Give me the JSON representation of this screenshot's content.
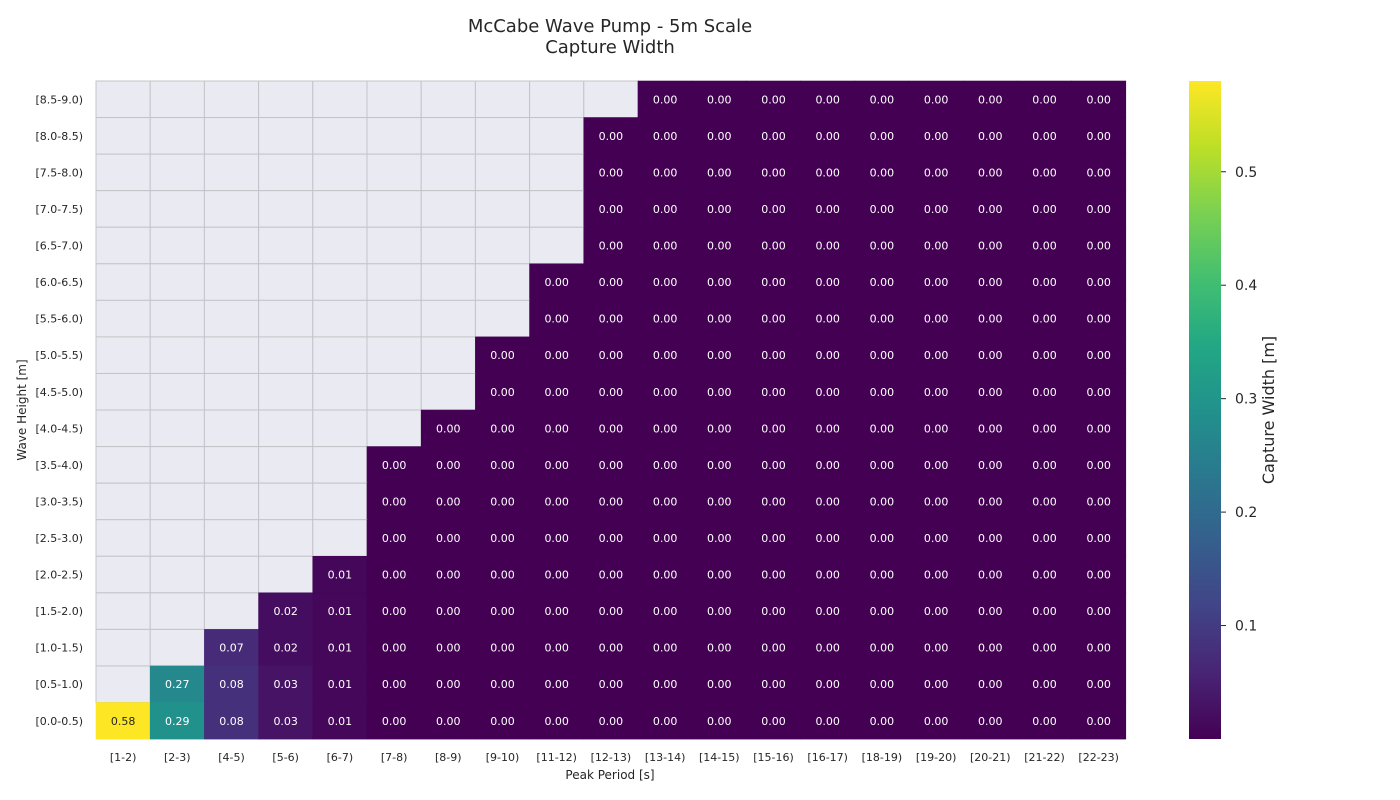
{
  "chart_data": {
    "type": "heatmap",
    "title": [
      "McCabe Wave Pump - 5m Scale",
      "Capture Width"
    ],
    "xlabel": "Peak Period [s]",
    "ylabel": "Wave Height [m]",
    "colorbar_label": "Capture Width [m]",
    "colormap": "viridis",
    "vmin": 0.0,
    "vmax": 0.58,
    "colorbar_ticks": [
      0.1,
      0.2,
      0.3,
      0.4,
      0.5
    ],
    "missing_color": "#eaeaf2",
    "grid_color": "#c4c4c8",
    "x_categories": [
      "[1-2)",
      "[2-3)",
      "[4-5)",
      "[5-6)",
      "[6-7)",
      "[7-8)",
      "[8-9)",
      "[9-10)",
      "[11-12)",
      "[12-13)",
      "[13-14)",
      "[14-15)",
      "[15-16)",
      "[16-17)",
      "[18-19)",
      "[19-20)",
      "[20-21)",
      "[21-22)",
      "[22-23)"
    ],
    "y_categories": [
      "[8.5-9.0)",
      "[8.0-8.5)",
      "[7.5-8.0)",
      "[7.0-7.5)",
      "[6.5-7.0)",
      "[6.0-6.5)",
      "[5.5-6.0)",
      "[5.0-5.5)",
      "[4.5-5.0)",
      "[4.0-4.5)",
      "[3.5-4.0)",
      "[3.0-3.5)",
      "[2.5-3.0)",
      "[2.0-2.5)",
      "[1.5-2.0)",
      "[1.0-1.5)",
      "[0.5-1.0)",
      "[0.0-0.5)"
    ],
    "values": [
      [
        null,
        null,
        null,
        null,
        null,
        null,
        null,
        null,
        null,
        null,
        0.0,
        0.0,
        0.0,
        0.0,
        0.0,
        0.0,
        0.0,
        0.0,
        0.0
      ],
      [
        null,
        null,
        null,
        null,
        null,
        null,
        null,
        null,
        null,
        0.0,
        0.0,
        0.0,
        0.0,
        0.0,
        0.0,
        0.0,
        0.0,
        0.0,
        0.0
      ],
      [
        null,
        null,
        null,
        null,
        null,
        null,
        null,
        null,
        null,
        0.0,
        0.0,
        0.0,
        0.0,
        0.0,
        0.0,
        0.0,
        0.0,
        0.0,
        0.0
      ],
      [
        null,
        null,
        null,
        null,
        null,
        null,
        null,
        null,
        null,
        0.0,
        0.0,
        0.0,
        0.0,
        0.0,
        0.0,
        0.0,
        0.0,
        0.0,
        0.0
      ],
      [
        null,
        null,
        null,
        null,
        null,
        null,
        null,
        null,
        null,
        0.0,
        0.0,
        0.0,
        0.0,
        0.0,
        0.0,
        0.0,
        0.0,
        0.0,
        0.0
      ],
      [
        null,
        null,
        null,
        null,
        null,
        null,
        null,
        null,
        0.0,
        0.0,
        0.0,
        0.0,
        0.0,
        0.0,
        0.0,
        0.0,
        0.0,
        0.0,
        0.0
      ],
      [
        null,
        null,
        null,
        null,
        null,
        null,
        null,
        null,
        0.0,
        0.0,
        0.0,
        0.0,
        0.0,
        0.0,
        0.0,
        0.0,
        0.0,
        0.0,
        0.0
      ],
      [
        null,
        null,
        null,
        null,
        null,
        null,
        null,
        0.0,
        0.0,
        0.0,
        0.0,
        0.0,
        0.0,
        0.0,
        0.0,
        0.0,
        0.0,
        0.0,
        0.0
      ],
      [
        null,
        null,
        null,
        null,
        null,
        null,
        null,
        0.0,
        0.0,
        0.0,
        0.0,
        0.0,
        0.0,
        0.0,
        0.0,
        0.0,
        0.0,
        0.0,
        0.0
      ],
      [
        null,
        null,
        null,
        null,
        null,
        null,
        0.0,
        0.0,
        0.0,
        0.0,
        0.0,
        0.0,
        0.0,
        0.0,
        0.0,
        0.0,
        0.0,
        0.0,
        0.0
      ],
      [
        null,
        null,
        null,
        null,
        null,
        0.0,
        0.0,
        0.0,
        0.0,
        0.0,
        0.0,
        0.0,
        0.0,
        0.0,
        0.0,
        0.0,
        0.0,
        0.0,
        0.0
      ],
      [
        null,
        null,
        null,
        null,
        null,
        0.0,
        0.0,
        0.0,
        0.0,
        0.0,
        0.0,
        0.0,
        0.0,
        0.0,
        0.0,
        0.0,
        0.0,
        0.0,
        0.0
      ],
      [
        null,
        null,
        null,
        null,
        null,
        0.0,
        0.0,
        0.0,
        0.0,
        0.0,
        0.0,
        0.0,
        0.0,
        0.0,
        0.0,
        0.0,
        0.0,
        0.0,
        0.0
      ],
      [
        null,
        null,
        null,
        null,
        0.01,
        0.0,
        0.0,
        0.0,
        0.0,
        0.0,
        0.0,
        0.0,
        0.0,
        0.0,
        0.0,
        0.0,
        0.0,
        0.0,
        0.0
      ],
      [
        null,
        null,
        null,
        0.02,
        0.01,
        0.0,
        0.0,
        0.0,
        0.0,
        0.0,
        0.0,
        0.0,
        0.0,
        0.0,
        0.0,
        0.0,
        0.0,
        0.0,
        0.0
      ],
      [
        null,
        null,
        0.07,
        0.02,
        0.01,
        0.0,
        0.0,
        0.0,
        0.0,
        0.0,
        0.0,
        0.0,
        0.0,
        0.0,
        0.0,
        0.0,
        0.0,
        0.0,
        0.0
      ],
      [
        null,
        0.27,
        0.08,
        0.03,
        0.01,
        0.0,
        0.0,
        0.0,
        0.0,
        0.0,
        0.0,
        0.0,
        0.0,
        0.0,
        0.0,
        0.0,
        0.0,
        0.0,
        0.0
      ],
      [
        0.58,
        0.29,
        0.08,
        0.03,
        0.01,
        0.0,
        0.0,
        0.0,
        0.0,
        0.0,
        0.0,
        0.0,
        0.0,
        0.0,
        0.0,
        0.0,
        0.0,
        0.0,
        0.0
      ]
    ]
  }
}
